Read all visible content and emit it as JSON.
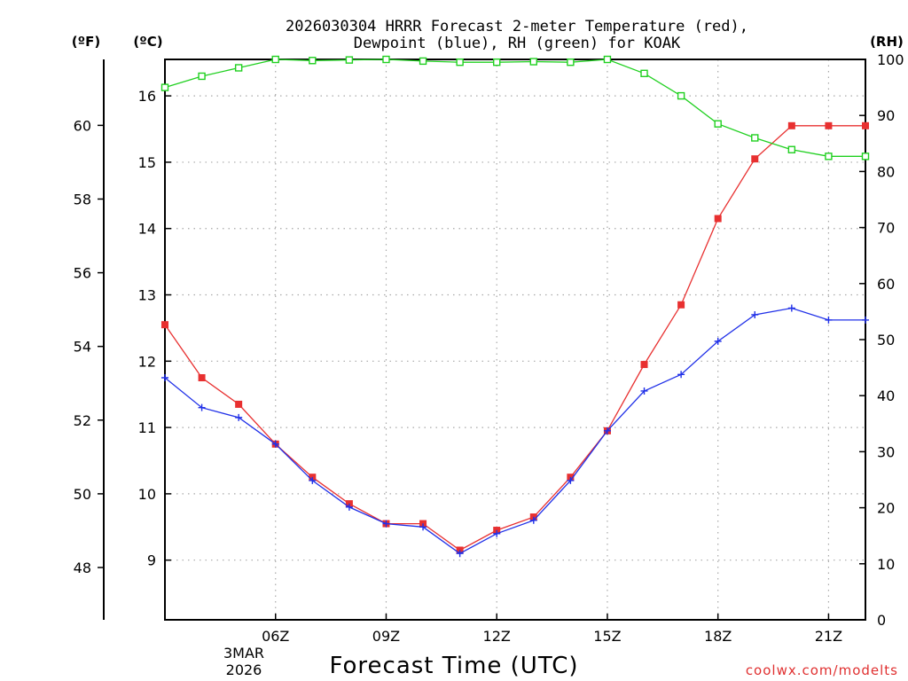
{
  "chart_data": {
    "type": "line",
    "title_line1": "2026030304 HRRR Forecast 2-meter Temperature (red),",
    "title_line2": "Dewpoint (blue), RH (green) for KOAK",
    "xlabel": "Forecast Time (UTC)",
    "credit": "coolwx.com/modelts",
    "left_outer_unit": "(ºF)",
    "left_unit": "(ºC)",
    "right_unit": "(RH)",
    "x_range": [
      3,
      22
    ],
    "x_tick_values": [
      6,
      9,
      12,
      15,
      18,
      21
    ],
    "x_tick_labels": [
      "06Z",
      "09Z",
      "12Z",
      "15Z",
      "18Z",
      "21Z"
    ],
    "date_label_line1": "3MAR",
    "date_label_line2": "2026",
    "celsius_range": [
      8.1,
      16.55
    ],
    "celsius_ticks": [
      9,
      10,
      11,
      12,
      13,
      14,
      15,
      16
    ],
    "fahrenheit_ticks": [
      48,
      50,
      52,
      54,
      56,
      58,
      60
    ],
    "rh_range": [
      0,
      100
    ],
    "rh_ticks": [
      0,
      10,
      20,
      30,
      40,
      50,
      60,
      70,
      80,
      90,
      100
    ],
    "series": [
      {
        "name": "Temperature",
        "color": "#e83030",
        "marker": "filled-square",
        "axis": "celsius",
        "x": [
          3,
          4,
          5,
          6,
          7,
          8,
          9,
          10,
          11,
          12,
          13,
          14,
          15,
          16,
          17,
          18,
          19,
          20,
          21,
          22
        ],
        "values": [
          12.55,
          11.75,
          11.35,
          10.75,
          10.25,
          9.85,
          9.55,
          9.55,
          9.15,
          9.45,
          9.65,
          10.25,
          10.95,
          11.95,
          12.85,
          14.15,
          15.05,
          15.55,
          15.55,
          15.55
        ]
      },
      {
        "name": "Dewpoint",
        "color": "#2030e8",
        "marker": "plus",
        "axis": "celsius",
        "x": [
          3,
          4,
          5,
          6,
          7,
          8,
          9,
          10,
          11,
          12,
          13,
          14,
          15,
          16,
          17,
          18,
          19,
          20,
          21,
          22
        ],
        "values": [
          11.75,
          11.3,
          11.15,
          10.75,
          10.2,
          9.8,
          9.55,
          9.5,
          9.1,
          9.4,
          9.6,
          10.2,
          10.95,
          11.55,
          11.8,
          12.3,
          12.7,
          12.8,
          12.62,
          12.62
        ]
      },
      {
        "name": "RH",
        "color": "#20d020",
        "marker": "open-square",
        "axis": "rh",
        "x": [
          3,
          4,
          5,
          6,
          7,
          8,
          9,
          10,
          11,
          12,
          13,
          14,
          15,
          16,
          17,
          18,
          19,
          20,
          21,
          22
        ],
        "values": [
          95,
          97,
          98.5,
          100,
          99.8,
          99.9,
          100,
          99.7,
          99.5,
          99.5,
          99.6,
          99.5,
          100,
          97.5,
          93.5,
          88.5,
          86,
          83.9,
          82.7,
          82.7
        ]
      }
    ]
  }
}
